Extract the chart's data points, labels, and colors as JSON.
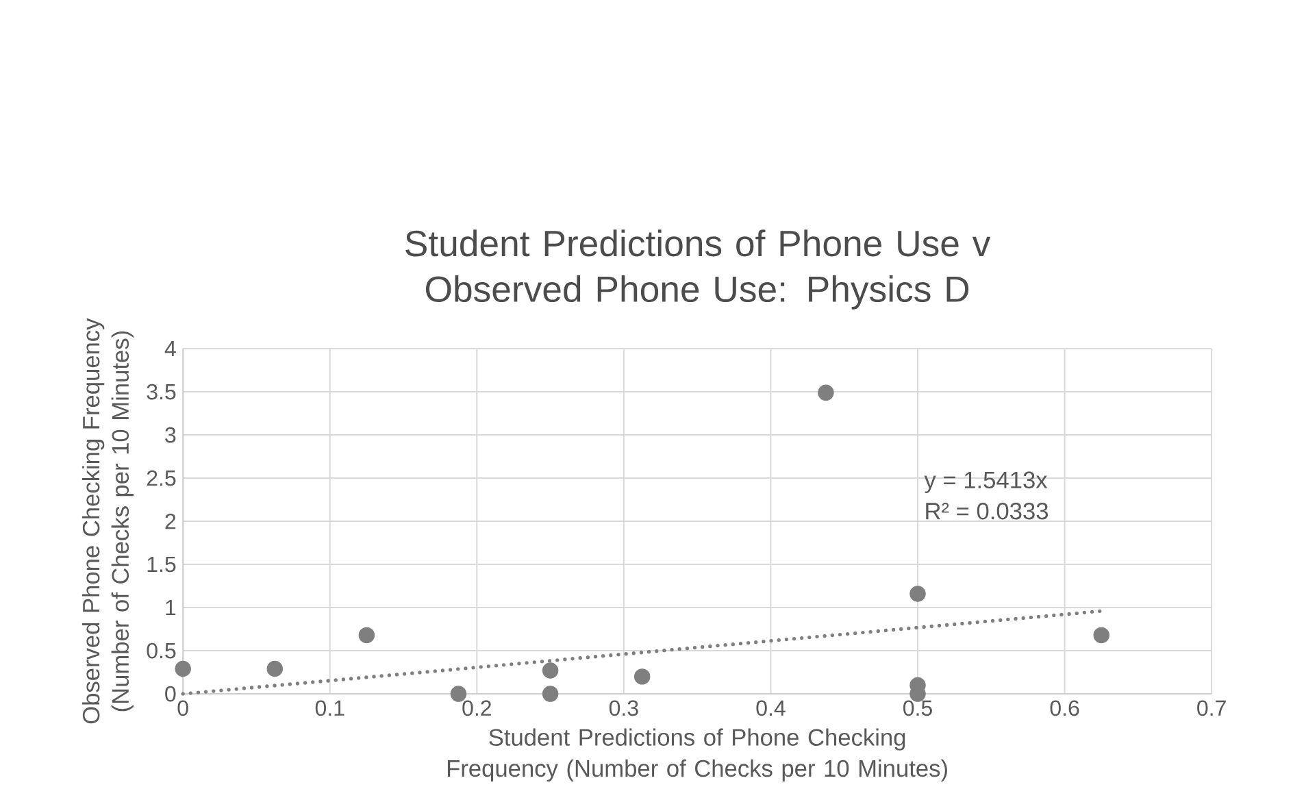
{
  "chart_data": {
    "type": "scatter",
    "title": "Student Predictions of Phone Use v Observed Phone Use: Physics D",
    "xlabel": "Student Predictions of Phone Checking Frequency (Number of Checks per 10 Minutes)",
    "ylabel": "Observed Phone Checking Frequency (Number of Checks per 10 Minutes)",
    "series": [
      {
        "color": "#7f7f7f",
        "marker": "circle",
        "x": [
          0,
          0.0625,
          0.125,
          0.1875,
          0.25,
          0.25,
          0.3125,
          0.4375,
          0.5,
          0.5,
          0.5,
          0.625
        ],
        "values": [
          0.29,
          0.29,
          0.68,
          0,
          0.27,
          0,
          0.2,
          3.49,
          1.16,
          0.1,
          0,
          0.68
        ]
      },
      {
        "type": "line",
        "color": "#7f7f7f",
        "marker": "none",
        "line_style": "dotted",
        "x": [
          0,
          0.625
        ],
        "values": [
          0,
          0.96
        ]
      }
    ],
    "annotations": [
      "y = 1.5413x",
      "R² = 0.0333"
    ],
    "xlim": [
      0,
      0.7
    ],
    "xticks": [
      0,
      0.1,
      0.2,
      0.3,
      0.4,
      0.5,
      0.6,
      0.7
    ],
    "ylim": [
      0,
      4
    ],
    "yticks": [
      0,
      0.5,
      1,
      1.5,
      2,
      2.5,
      3,
      3.5,
      4
    ],
    "grid": true
  }
}
